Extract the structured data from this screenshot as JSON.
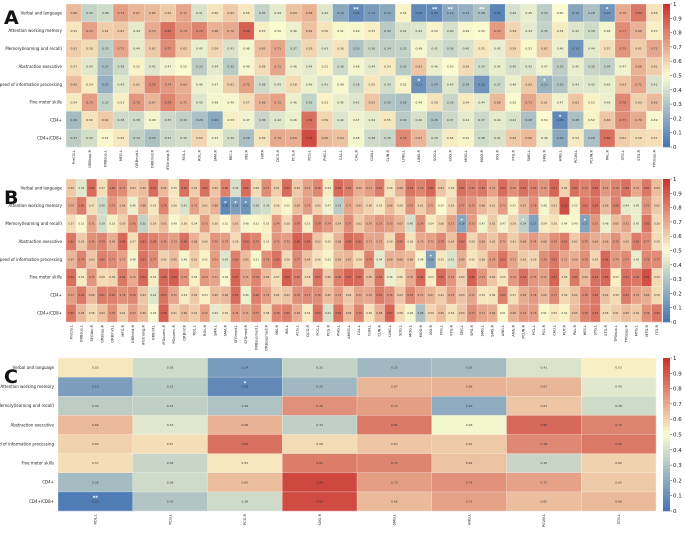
{
  "chart_data": [
    {
      "type": "heatmap",
      "panel": "A",
      "rows": [
        "Verbal and language",
        "Attention working memory",
        "Memory(learning and recall)",
        "Abstraction executive",
        "Speed of information processing",
        "Fine motor skills",
        "CD4+",
        "CD4+/CD8+"
      ],
      "columns": [
        "PreCG.L",
        "ORBsup.R",
        "ORBsup.L",
        "MFG.L",
        "ORBmid.L",
        "ORBmid.R",
        "IFGtriang.R",
        "ROL.L",
        "ROL.R",
        "SMA.R",
        "REC.L",
        "INS.R",
        "HIP.R",
        "DCG.R",
        "PCG.R",
        "PCG.L",
        "PHG.L",
        "CAL.L",
        "CAL.R",
        "CUN.L",
        "CUN.R",
        "LING.L",
        "LING.R",
        "SOG.L",
        "SOG.R",
        "MOG.L",
        "MOG.R",
        "IOG.R",
        "FFG.R",
        "SMG.L",
        "SMG.R",
        "ANG.L",
        "PCUN.L",
        "PCUN.R",
        "PAL.R",
        "STG.L",
        "STG.R",
        "TPOsup.R"
      ],
      "values": [
        [
          0.66,
          0.35,
          0.38,
          0.73,
          0.67,
          0.66,
          0.62,
          0.71,
          0.41,
          0.56,
          0.62,
          0.55,
          0.35,
          0.44,
          0.64,
          0.68,
          0.42,
          0.19,
          0.08,
          0.14,
          0.19,
          0.52,
          0.08,
          0.08,
          0.19,
          0.22,
          0.28,
          0.06,
          0.4,
          0.45,
          0.33,
          0.5,
          0.18,
          0.28,
          0.12,
          0.7,
          0.82,
          0.56
        ],
        [
          0.55,
          0.72,
          0.61,
          0.62,
          0.44,
          0.7,
          0.84,
          0.74,
          0.79,
          0.68,
          0.7,
          0.88,
          0.53,
          0.5,
          0.46,
          0.64,
          0.56,
          0.51,
          0.49,
          0.53,
          0.32,
          0.41,
          0.42,
          0.52,
          0.4,
          0.49,
          0.5,
          0.74,
          0.59,
          0.44,
          0.35,
          0.54,
          0.42,
          0.38,
          0.48,
          0.77,
          0.68,
          0.53
        ],
        [
          0.61,
          0.58,
          0.33,
          0.71,
          0.44,
          0.62,
          0.77,
          0.62,
          0.45,
          0.59,
          0.41,
          0.48,
          0.65,
          0.71,
          0.37,
          0.59,
          0.43,
          0.56,
          0.29,
          0.36,
          0.34,
          0.35,
          0.48,
          0.41,
          0.36,
          0.4,
          0.55,
          0.45,
          0.59,
          0.51,
          0.62,
          0.46,
          0.12,
          0.44,
          0.57,
          0.75,
          0.61,
          0.71
        ],
        [
          0.57,
          0.43,
          0.27,
          0.38,
          0.52,
          0.42,
          0.47,
          0.5,
          0.33,
          0.44,
          0.32,
          0.49,
          0.58,
          0.71,
          0.46,
          0.44,
          0.52,
          0.38,
          0.48,
          0.44,
          0.54,
          0.32,
          0.63,
          0.46,
          0.5,
          0.58,
          0.39,
          0.45,
          0.4,
          0.42,
          0.47,
          0.33,
          0.45,
          0.36,
          0.34,
          0.47,
          0.68,
          0.61
        ],
        [
          0.65,
          0.54,
          0.22,
          0.43,
          0.61,
          0.78,
          0.74,
          0.69,
          0.46,
          0.47,
          0.61,
          0.72,
          0.38,
          0.43,
          0.58,
          0.46,
          0.41,
          0.49,
          0.38,
          0.55,
          0.39,
          0.52,
          0.11,
          0.24,
          0.43,
          0.29,
          0.12,
          0.37,
          0.46,
          0.62,
          0.23,
          0.3,
          0.43,
          0.42,
          0.45,
          0.63,
          0.71,
          0.41
        ],
        [
          0.54,
          0.73,
          0.35,
          0.53,
          0.75,
          0.67,
          0.79,
          0.71,
          0.42,
          0.48,
          0.49,
          0.57,
          0.68,
          0.72,
          0.46,
          0.35,
          0.52,
          0.45,
          0.42,
          0.63,
          0.3,
          0.28,
          0.49,
          0.56,
          0.36,
          0.54,
          0.44,
          0.66,
          0.5,
          0.71,
          0.61,
          0.47,
          0.63,
          0.52,
          0.46,
          0.78,
          0.6,
          0.66
        ],
        [
          0.26,
          0.56,
          0.62,
          0.38,
          0.38,
          0.48,
          0.37,
          0.34,
          0.28,
          0.19,
          0.53,
          0.47,
          0.36,
          0.42,
          0.46,
          0.84,
          0.59,
          0.42,
          0.47,
          0.44,
          0.55,
          0.32,
          0.4,
          0.28,
          0.37,
          0.44,
          0.37,
          0.44,
          0.41,
          0.28,
          0.5,
          0.08,
          0.28,
          0.52,
          0.63,
          0.77,
          0.7,
          0.49
        ],
        [
          0.33,
          0.39,
          0.51,
          0.55,
          0.34,
          0.28,
          0.37,
          0.39,
          0.59,
          0.47,
          0.39,
          0.28,
          0.56,
          0.7,
          0.69,
          0.93,
          0.66,
          0.64,
          0.48,
          0.38,
          0.36,
          0.78,
          0.67,
          0.39,
          0.54,
          0.52,
          0.38,
          0.41,
          0.62,
          0.66,
          0.46,
          0.19,
          0.54,
          0.28,
          0.84,
          0.61,
          0.58,
          0.57
        ]
      ],
      "significant": [
        [
          0,
          18,
          "**"
        ],
        [
          0,
          23,
          "**"
        ],
        [
          0,
          24,
          "**"
        ],
        [
          0,
          26,
          "**"
        ],
        [
          4,
          21,
          "*"
        ],
        [
          4,
          22,
          "*"
        ],
        [
          4,
          30,
          "*"
        ],
        [
          6,
          31,
          "*"
        ],
        [
          0,
          34,
          "*"
        ]
      ],
      "colorbar_ticks": [
        "0",
        "0.1",
        "0.2",
        "0.3",
        "0.4",
        "0.5",
        "0.6",
        "0.7",
        "0.8",
        "0.9",
        "1"
      ],
      "colorbar_range": [
        0,
        1
      ]
    },
    {
      "type": "heatmap",
      "panel": "B",
      "rows": [
        "Verbal and language",
        "Attention working memory",
        "Memory(learning and recall)",
        "Abstraction executive",
        "Speed of information processing",
        "Fine motor skills",
        "CD4+",
        "CD4+/CD8+"
      ],
      "columns": [
        "PreCG.L",
        "ORBsup.L",
        "SFGdor.R",
        "ORBsup.R",
        "ORBmid.L",
        "MFG.R",
        "ORBmid.R",
        "IFGtriang.R",
        "ORBinf.L",
        "IFGoperc.R",
        "PGoperc.R",
        "ORBinf.R",
        "ROL.L",
        "ROL.R",
        "SMA.L",
        "SMA.R",
        "SFGmed.L",
        "SFGmed.R",
        "ORBsupmed.L",
        "ORBsupmed.R",
        "INS.R",
        "INS.L",
        "ACG.L",
        "DCG.R",
        "PCG.L",
        "PCG.R",
        "PHG.L",
        "AMYG.L",
        "CAL.L",
        "CUN.L",
        "CUN.R",
        "LING.L",
        "SOG.L",
        "MOG.L",
        "MOG.R",
        "IOG.R",
        "FFG.L",
        "FFG.R",
        "SPG.L",
        "SPG.R",
        "SMG.L",
        "SMG.R",
        "ANG.L",
        "ANG.R",
        "PCUN.R",
        "PCL.L",
        "PCL.R",
        "CAU.L",
        "PUT.R",
        "PAL.R",
        "HES.L",
        "STG.L",
        "STG.R",
        "TPOsup.L",
        "TPOsup.R",
        "MTG.L",
        "MTG.R",
        "ITG.R"
      ],
      "values": [
        [
          0.62,
          0.43,
          0.85,
          0.57,
          0.8,
          0.77,
          0.63,
          0.65,
          0.85,
          0.66,
          0.55,
          0.84,
          0.61,
          0.84,
          0.63,
          0.8,
          0.4,
          0.85,
          0.58,
          0.77,
          0.61,
          0.85,
          0.62,
          0.72,
          0.78,
          0.54,
          0.86,
          0.81,
          0.69,
          0.73,
          0.81,
          0.56,
          0.68,
          0.83,
          0.79,
          0.86,
          0.63,
          0.56,
          0.84,
          0.8,
          0.82,
          0.72,
          0.85,
          0.76,
          0.84,
          0.8,
          0.75,
          0.87,
          0.6,
          0.84,
          0.79,
          0.85,
          0.74,
          0.79,
          0.84,
          0.7,
          0.82,
          0.65
        ],
        [
          0.7,
          0.81,
          0.57,
          0.38,
          0.75,
          0.66,
          0.46,
          0.68,
          0.55,
          0.79,
          0.56,
          0.41,
          0.72,
          0.62,
          0.68,
          0.08,
          0.15,
          0.12,
          0.36,
          0.39,
          0.56,
          0.51,
          0.65,
          0.73,
          0.6,
          0.47,
          0.33,
          0.71,
          0.65,
          0.6,
          0.55,
          0.66,
          0.58,
          0.75,
          0.61,
          0.71,
          0.5,
          0.59,
          0.77,
          0.75,
          0.66,
          0.61,
          0.73,
          0.52,
          0.67,
          0.76,
          0.48,
          0.61,
          0.92,
          0.52,
          0.82,
          0.84,
          0.66,
          0.8,
          0.44,
          0.45,
          0.75,
          0.62
        ],
        [
          0.57,
          0.51,
          0.71,
          0.39,
          0.53,
          0.6,
          0.76,
          0.35,
          0.59,
          0.65,
          0.49,
          0.56,
          0.54,
          0.73,
          0.58,
          0.51,
          0.63,
          0.48,
          0.51,
          0.53,
          0.74,
          0.58,
          0.78,
          0.53,
          0.79,
          0.74,
          0.64,
          0.77,
          0.62,
          0.7,
          0.75,
          0.73,
          0.67,
          0.4,
          0.76,
          0.54,
          0.6,
          0.72,
          0.18,
          0.73,
          0.47,
          0.62,
          0.47,
          0.59,
          0.34,
          0.17,
          0.54,
          0.56,
          0.49,
          0.49,
          0.17,
          0.75,
          0.46,
          0.65,
          0.71,
          0.45,
          0.83,
          0.58
        ],
        [
          0.82,
          0.62,
          0.76,
          0.79,
          0.69,
          0.86,
          0.57,
          0.83,
          0.8,
          0.76,
          0.73,
          0.84,
          0.68,
          0.6,
          0.75,
          0.73,
          0.58,
          0.83,
          0.79,
          0.53,
          0.75,
          0.73,
          0.88,
          0.84,
          0.63,
          0.55,
          0.68,
          0.85,
          0.82,
          0.71,
          0.71,
          0.58,
          0.8,
          0.56,
          0.7,
          0.72,
          0.78,
          0.64,
          0.83,
          0.59,
          0.69,
          0.63,
          0.72,
          0.61,
          0.69,
          0.74,
          0.68,
          0.76,
          0.81,
          0.62,
          0.75,
          0.69,
          0.68,
          0.76,
          0.65,
          0.81,
          0.77,
          0.58
        ],
        [
          0.67,
          0.79,
          0.63,
          0.8,
          0.77,
          0.72,
          0.48,
          0.83,
          0.77,
          0.6,
          0.65,
          0.48,
          0.61,
          0.52,
          0.73,
          0.42,
          0.8,
          0.65,
          0.51,
          0.76,
          0.83,
          0.58,
          0.77,
          0.64,
          0.56,
          0.52,
          0.65,
          0.67,
          0.58,
          0.79,
          0.44,
          0.68,
          0.68,
          0.66,
          0.48,
          0.16,
          0.55,
          0.41,
          0.69,
          0.55,
          0.6,
          0.74,
          0.83,
          0.71,
          0.62,
          0.59,
          0.76,
          0.82,
          0.71,
          0.69,
          0.76,
          0.59,
          0.86,
          0.74,
          0.77,
          0.45,
          0.78,
          0.77
        ],
        [
          0.84,
          0.54,
          0.75,
          0.58,
          0.59,
          0.82,
          0.7,
          0.86,
          0.54,
          0.86,
          0.89,
          0.75,
          0.53,
          0.74,
          0.71,
          0.49,
          0.87,
          0.71,
          0.79,
          0.65,
          0.57,
          0.88,
          0.8,
          0.58,
          0.83,
          0.62,
          0.8,
          0.87,
          0.85,
          0.65,
          0.82,
          0.46,
          0.56,
          0.7,
          0.86,
          0.53,
          0.85,
          0.75,
          0.6,
          0.88,
          0.75,
          0.63,
          0.55,
          0.74,
          0.84,
          0.75,
          0.72,
          0.87,
          0.58,
          0.82,
          0.66,
          0.84,
          0.86,
          0.53,
          0.84,
          0.82,
          0.92,
          0.58
        ],
        [
          0.73,
          0.82,
          0.66,
          0.81,
          0.8,
          0.76,
          0.78,
          0.63,
          0.42,
          0.83,
          0.71,
          0.54,
          0.62,
          0.53,
          0.65,
          0.66,
          0.85,
          0.46,
          0.8,
          0.73,
          0.61,
          0.63,
          0.76,
          0.77,
          0.76,
          0.65,
          0.73,
          0.62,
          0.71,
          0.7,
          0.81,
          0.76,
          0.63,
          0.78,
          0.71,
          0.67,
          0.61,
          0.72,
          0.63,
          0.71,
          0.55,
          0.56,
          0.8,
          0.57,
          0.69,
          0.74,
          0.66,
          0.77,
          0.59,
          0.64,
          0.78,
          0.82,
          0.64,
          0.58,
          0.81,
          0.72,
          0.69,
          0.58
        ],
        [
          0.82,
          0.66,
          0.58,
          0.64,
          0.76,
          0.61,
          0.73,
          0.65,
          0.49,
          0.88,
          0.61,
          0.66,
          0.61,
          0.72,
          0.44,
          0.56,
          0.74,
          0.71,
          0.77,
          0.58,
          0.78,
          0.8,
          0.69,
          0.54,
          0.83,
          0.41,
          0.84,
          0.65,
          0.79,
          0.56,
          0.68,
          0.87,
          0.58,
          0.48,
          0.28,
          0.59,
          0.65,
          0.56,
          0.63,
          0.77,
          0.71,
          0.69,
          0.51,
          0.68,
          0.74,
          0.73,
          0.51,
          0.55,
          0.52,
          0.65,
          0.79,
          0.83,
          0.58,
          0.61,
          0.65,
          0.62,
          0.76,
          0.82
        ]
      ],
      "significant": [
        [
          1,
          15,
          "*"
        ],
        [
          1,
          16,
          "*"
        ],
        [
          1,
          17,
          "*"
        ],
        [
          2,
          38,
          "*"
        ],
        [
          2,
          44,
          "*"
        ],
        [
          2,
          50,
          "*"
        ],
        [
          4,
          35,
          "*"
        ]
      ],
      "colorbar_ticks": [
        "0",
        "0.1",
        "0.2",
        "0.3",
        "0.4",
        "0.5",
        "0.6",
        "0.7",
        "0.8",
        "0.9",
        "1"
      ],
      "colorbar_range": [
        0,
        1
      ]
    },
    {
      "type": "heatmap",
      "panel": "C",
      "rows": [
        "Verbal and language",
        "Attention working memory",
        "Memory(learning and recall)",
        "Abstraction executive",
        "Speed of information processing",
        "Fine motor skills",
        "CD4+",
        "CD4+/CD8+"
      ],
      "columns": [
        "ROL.L",
        "PCG.L",
        "PCG.R",
        "SOG.R",
        "SMG.L",
        "ANG.L",
        "PCUN.L",
        "STG.L"
      ],
      "values": [
        [
          0.55,
          0.38,
          0.14,
          0.35,
          0.25,
          0.26,
          0.41,
          0.53
        ],
        [
          0.15,
          0.32,
          0.08,
          0.25,
          0.67,
          0.68,
          0.67,
          0.43
        ],
        [
          0.33,
          0.34,
          0.29,
          0.76,
          0.73,
          0.2,
          0.63,
          0.38
        ],
        [
          0.66,
          0.43,
          0.68,
          0.34,
          0.82,
          0.48,
          0.86,
          0.79
        ],
        [
          0.6,
          0.57,
          0.84,
          0.58,
          0.63,
          0.62,
          0.78,
          0.82
        ],
        [
          0.57,
          0.36,
          0.55,
          0.81,
          0.79,
          0.64,
          0.36,
          0.6
        ],
        [
          0.26,
          0.38,
          0.65,
          0.94,
          0.73,
          0.76,
          0.72,
          0.62
        ],
        [
          0.03,
          0.3,
          0.38,
          0.93,
          0.66,
          0.72,
          0.65,
          0.66
        ]
      ],
      "significant": [
        [
          1,
          2,
          "*"
        ],
        [
          7,
          0,
          "**"
        ]
      ],
      "colorbar_ticks": [
        "0",
        "0.1",
        "0.2",
        "0.3",
        "0.4",
        "0.5",
        "0.6",
        "0.7",
        "0.8",
        "0.9",
        "1"
      ],
      "colorbar_range": [
        0,
        1
      ]
    }
  ],
  "panel_labels": [
    "A",
    "B",
    "C"
  ],
  "colors": {
    "low": "#4575b4",
    "mid": "#fbfbcf",
    "high": "#c9302c",
    "text": "#222222"
  }
}
